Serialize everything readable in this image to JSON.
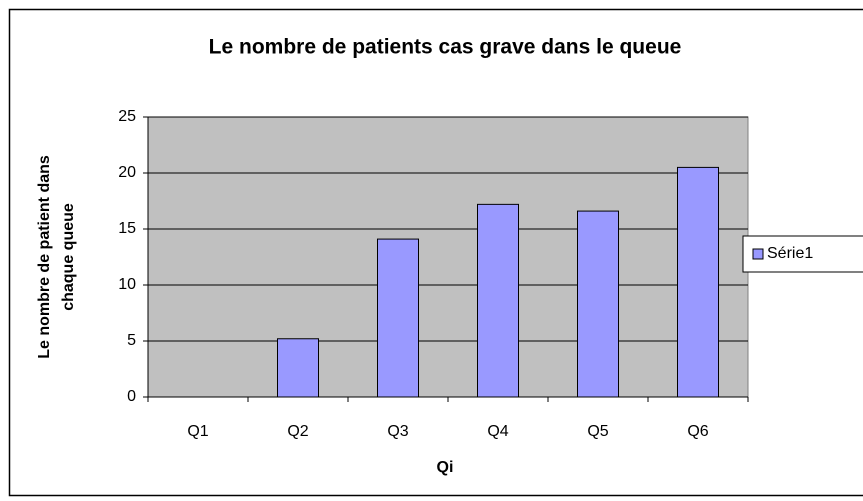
{
  "chart_data": {
    "type": "bar",
    "title": "Le nombre de patients cas grave dans le queue",
    "xlabel": "Qi",
    "ylabel": [
      "Le nombre de patient dans",
      "chaque queue"
    ],
    "categories": [
      "Q1",
      "Q2",
      "Q3",
      "Q4",
      "Q5",
      "Q6"
    ],
    "series": [
      {
        "name": "Série1",
        "color": "#9999ff",
        "values": [
          0,
          5.2,
          14.1,
          17.2,
          16.6,
          20.5
        ]
      }
    ],
    "ylim": [
      0,
      25
    ],
    "yticks": [
      0,
      5,
      10,
      15,
      20,
      25
    ],
    "grid": true,
    "legend": "right"
  }
}
